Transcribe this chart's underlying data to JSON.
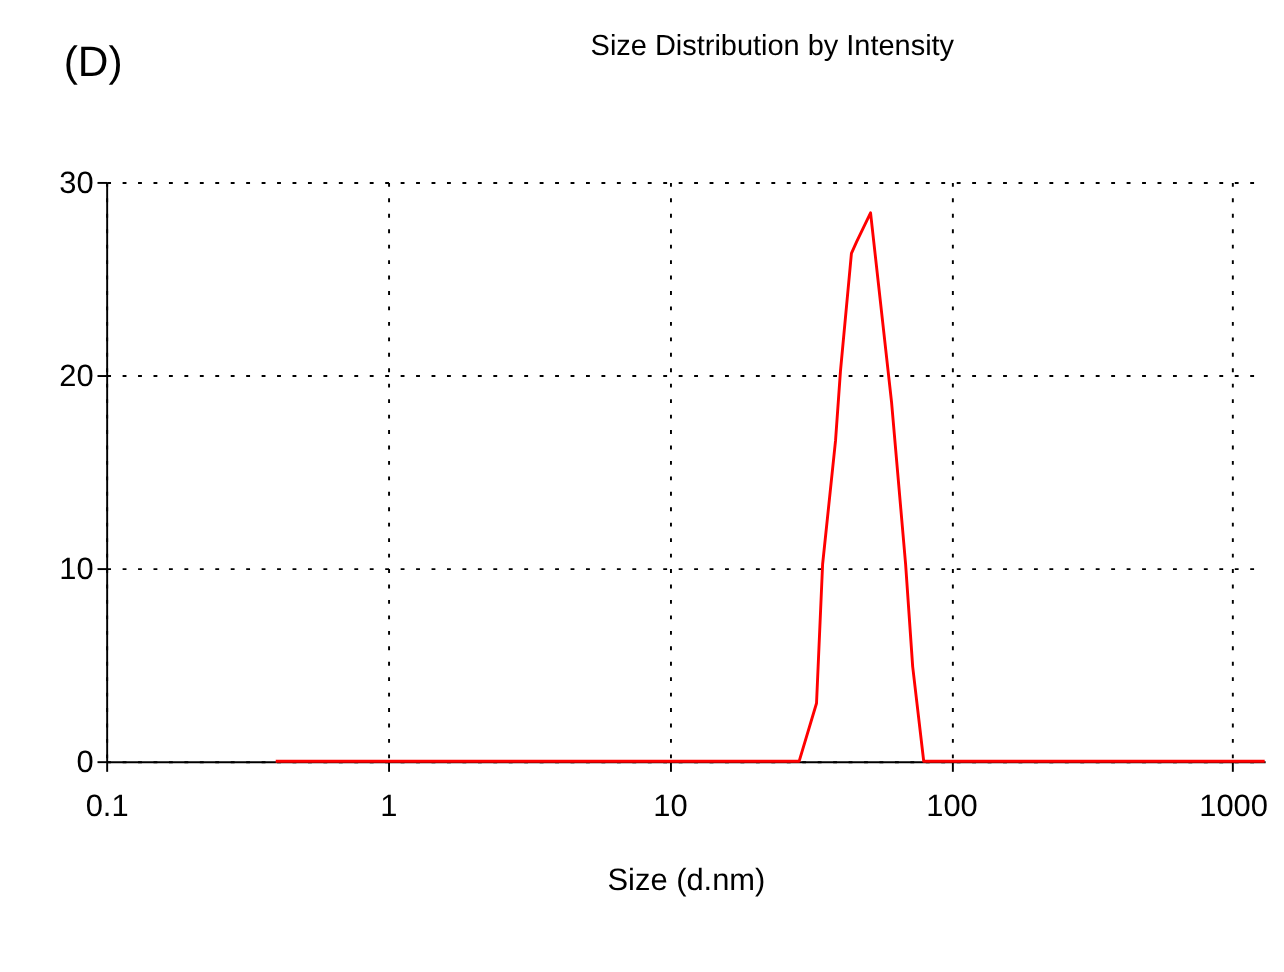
{
  "chart_data": {
    "type": "line",
    "title": "Size Distribution by Intensity",
    "xlabel": "Size (d.nm)",
    "annotations": [
      "(D)"
    ],
    "log": "x",
    "grid": true,
    "marker": "none",
    "line_style": "solid",
    "x": [
      0.4,
      28.9,
      33.3,
      35.0,
      38.9,
      40.5,
      44.3,
      46.2,
      51.8,
      61.5,
      69.0,
      73.1,
      80.0,
      1300
    ],
    "series": [
      {
        "color": "#ff0000",
        "values": [
          0,
          0,
          3.0,
          10.2,
          16.6,
          20.2,
          26.3,
          26.9,
          28.4,
          18.6,
          10.2,
          4.9,
          0,
          0
        ]
      }
    ],
    "xlim": [
      0.1,
      1300
    ],
    "xticks": [
      0.1,
      1,
      10,
      100,
      1000
    ],
    "ylim": [
      0,
      30
    ],
    "yticks": [
      0,
      10,
      20,
      30
    ]
  }
}
